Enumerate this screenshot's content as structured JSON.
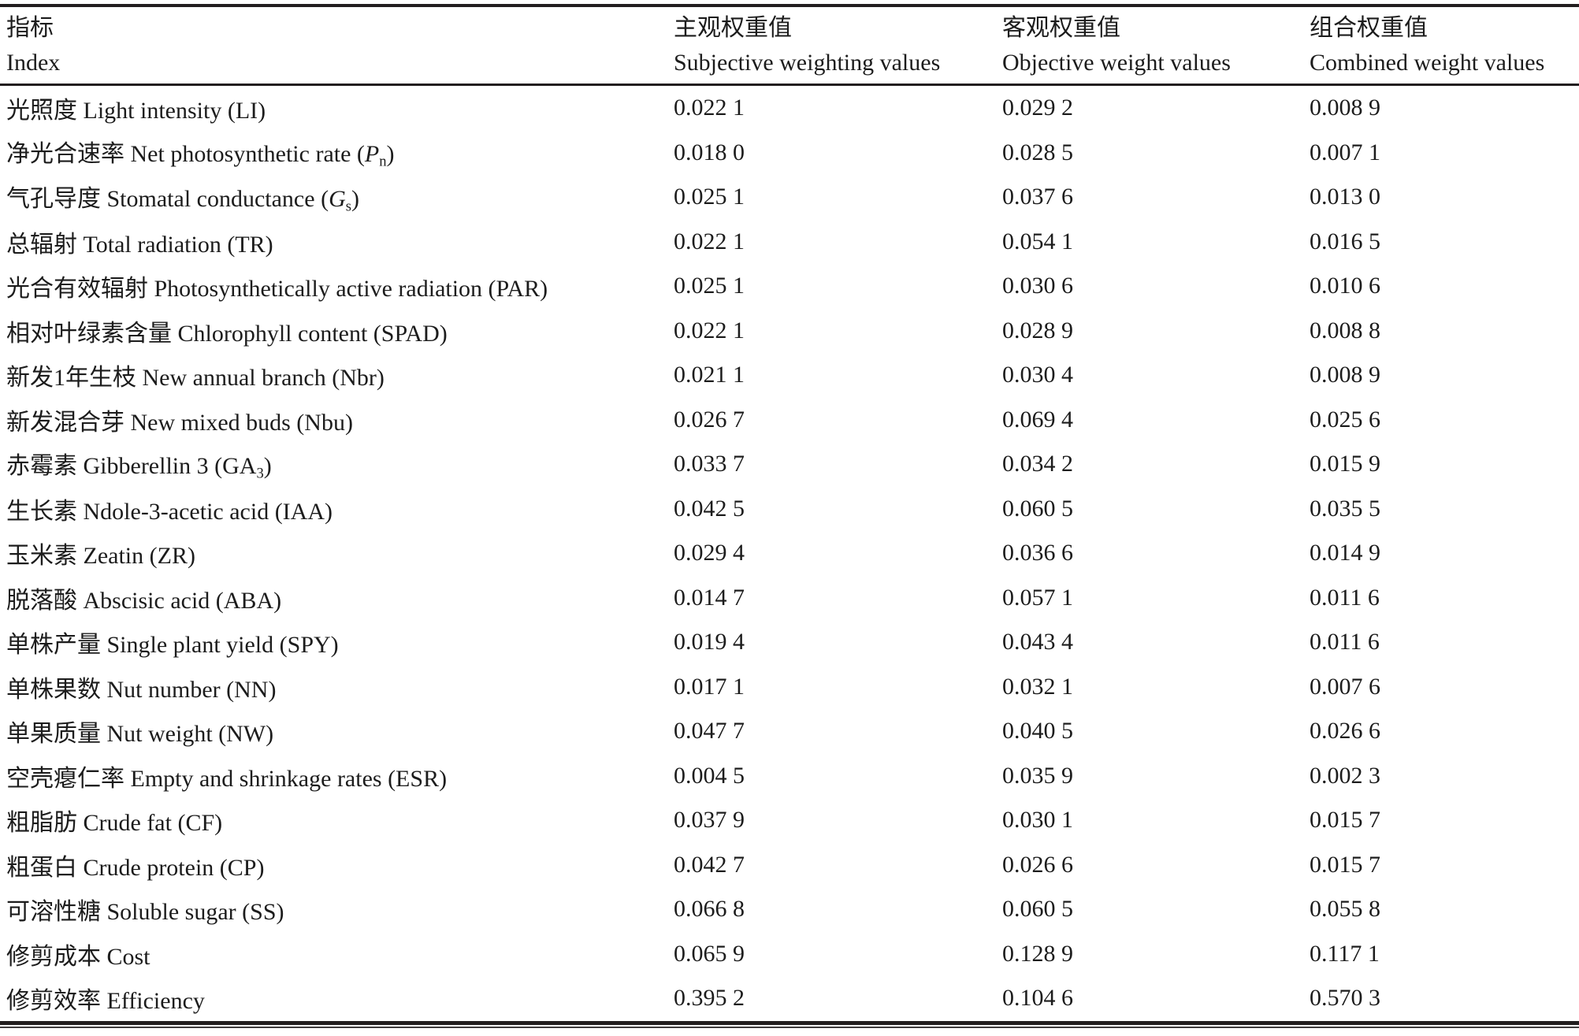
{
  "colors": {
    "text": "#1c1c1c",
    "rule": "#221e1f",
    "background": "#ffffff"
  },
  "table": {
    "header": {
      "index": {
        "zh": "指标",
        "en": "Index"
      },
      "subjective": {
        "zh": "主观权重值",
        "en": "Subjective weighting values"
      },
      "objective": {
        "zh": "客观权重值",
        "en": "Objective weight values"
      },
      "combined": {
        "zh": "组合权重值",
        "en": "Combined weight values"
      }
    },
    "rows": [
      {
        "index": [
          {
            "t": "光照度 Light intensity (LI)"
          }
        ],
        "subjective": "0.022 1",
        "objective": "0.029 2",
        "combined": "0.008 9"
      },
      {
        "index": [
          {
            "t": "净光合速率 Net photosynthetic rate ("
          },
          {
            "t": "P",
            "s": "i"
          },
          {
            "t": "n",
            "s": "sub"
          },
          {
            "t": ")"
          }
        ],
        "subjective": "0.018 0",
        "objective": "0.028 5",
        "combined": "0.007 1"
      },
      {
        "index": [
          {
            "t": "气孔导度 Stomatal conductance ("
          },
          {
            "t": "G",
            "s": "i"
          },
          {
            "t": "s",
            "s": "sub"
          },
          {
            "t": ")"
          }
        ],
        "subjective": "0.025 1",
        "objective": "0.037 6",
        "combined": "0.013 0"
      },
      {
        "index": [
          {
            "t": "总辐射 Total radiation (TR)"
          }
        ],
        "subjective": "0.022 1",
        "objective": "0.054 1",
        "combined": "0.016 5"
      },
      {
        "index": [
          {
            "t": "光合有效辐射 Photosynthetically active radiation (PAR)"
          }
        ],
        "subjective": "0.025 1",
        "objective": "0.030 6",
        "combined": "0.010 6"
      },
      {
        "index": [
          {
            "t": "相对叶绿素含量 Chlorophyll content (SPAD)"
          }
        ],
        "subjective": "0.022 1",
        "objective": "0.028 9",
        "combined": "0.008 8"
      },
      {
        "index": [
          {
            "t": "新发1年生枝 New annual branch (Nbr)"
          }
        ],
        "subjective": "0.021 1",
        "objective": "0.030 4",
        "combined": "0.008 9"
      },
      {
        "index": [
          {
            "t": "新发混合芽 New mixed buds (Nbu)"
          }
        ],
        "subjective": "0.026 7",
        "objective": "0.069 4",
        "combined": "0.025 6"
      },
      {
        "index": [
          {
            "t": "赤霉素 Gibberellin 3 (GA"
          },
          {
            "t": "3",
            "s": "sub"
          },
          {
            "t": ")"
          }
        ],
        "subjective": "0.033 7",
        "objective": "0.034 2",
        "combined": "0.015 9"
      },
      {
        "index": [
          {
            "t": "生长素 Ndole-3-acetic acid (IAA)"
          }
        ],
        "subjective": "0.042 5",
        "objective": "0.060 5",
        "combined": "0.035 5"
      },
      {
        "index": [
          {
            "t": "玉米素 Zeatin (ZR)"
          }
        ],
        "subjective": "0.029 4",
        "objective": "0.036 6",
        "combined": "0.014 9"
      },
      {
        "index": [
          {
            "t": "脱落酸 Abscisic acid (ABA)"
          }
        ],
        "subjective": "0.014 7",
        "objective": "0.057 1",
        "combined": "0.011 6"
      },
      {
        "index": [
          {
            "t": "单株产量 Single plant yield (SPY)"
          }
        ],
        "subjective": "0.019 4",
        "objective": "0.043 4",
        "combined": "0.011 6"
      },
      {
        "index": [
          {
            "t": "单株果数 Nut number (NN)"
          }
        ],
        "subjective": "0.017 1",
        "objective": "0.032 1",
        "combined": "0.007 6"
      },
      {
        "index": [
          {
            "t": "单果质量 Nut weight (NW)"
          }
        ],
        "subjective": "0.047 7",
        "objective": "0.040 5",
        "combined": "0.026 6"
      },
      {
        "index": [
          {
            "t": "空壳瘪仁率 Empty and shrinkage rates (ESR)"
          }
        ],
        "subjective": "0.004 5",
        "objective": "0.035 9",
        "combined": "0.002 3"
      },
      {
        "index": [
          {
            "t": "粗脂肪 Crude fat (CF)"
          }
        ],
        "subjective": "0.037 9",
        "objective": "0.030 1",
        "combined": "0.015 7"
      },
      {
        "index": [
          {
            "t": "粗蛋白 Crude protein (CP)"
          }
        ],
        "subjective": "0.042 7",
        "objective": "0.026 6",
        "combined": "0.015 7"
      },
      {
        "index": [
          {
            "t": "可溶性糖 Soluble sugar (SS)"
          }
        ],
        "subjective": "0.066 8",
        "objective": "0.060 5",
        "combined": "0.055 8"
      },
      {
        "index": [
          {
            "t": "修剪成本 Cost"
          }
        ],
        "subjective": "0.065 9",
        "objective": "0.128 9",
        "combined": "0.117 1"
      },
      {
        "index": [
          {
            "t": "修剪效率 Efficiency"
          }
        ],
        "subjective": "0.395 2",
        "objective": "0.104 6",
        "combined": "0.570 3"
      }
    ]
  }
}
